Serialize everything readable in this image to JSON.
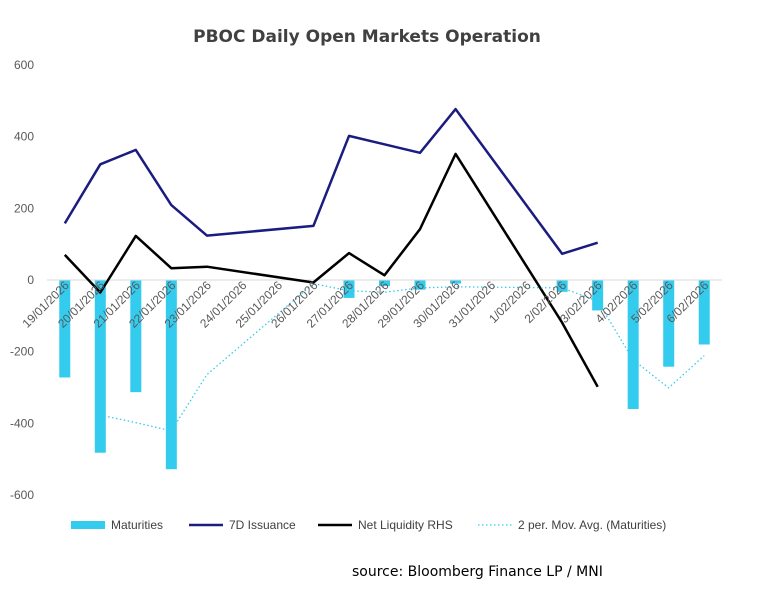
{
  "chart_data": {
    "type": "bar",
    "title": "PBOC Daily Open Markets Operation",
    "categories": [
      "19/01/2026",
      "20/01/2026",
      "21/01/2026",
      "22/01/2026",
      "23/01/2026",
      "24/01/2026",
      "25/01/2026",
      "26/01/2026",
      "27/01/2026",
      "28/01/2026",
      "29/01/2026",
      "30/01/2026",
      "31/01/2026",
      "1/02/2026",
      "2/02/2026",
      "3/02/2026",
      "4/02/2026",
      "5/02/2026",
      "6/02/2026"
    ],
    "ylim": [
      -600,
      600
    ],
    "yticks": [
      -600,
      -400,
      -200,
      0,
      200,
      400,
      600
    ],
    "ytick_labels": [
      "-600",
      "-400",
      "-200",
      "0",
      "200",
      "400",
      "600"
    ],
    "grid": false,
    "legend_position": "bottom",
    "series": [
      {
        "name": "Maturities",
        "type": "bar",
        "color": "#33CCEE",
        "values": [
          -272,
          -482,
          -313,
          -528,
          null,
          null,
          null,
          null,
          -50,
          -17,
          -27,
          -10,
          null,
          null,
          -33,
          -85,
          -360,
          -242,
          -180
        ]
      },
      {
        "name": "7D Issuance",
        "type": "line",
        "color": "#1B1C80",
        "values": [
          158,
          323,
          363,
          209,
          124,
          null,
          null,
          151,
          402,
          null,
          355,
          477,
          null,
          null,
          73,
          104,
          null,
          null,
          null
        ]
      },
      {
        "name": "Net Liquidity RHS",
        "type": "line",
        "color": "#000000",
        "values": [
          70,
          -35,
          123,
          33,
          37,
          null,
          null,
          -7,
          75,
          13,
          142,
          352,
          null,
          null,
          -119,
          -298,
          null,
          null,
          null
        ]
      },
      {
        "name": "2 per. Mov. Avg. (Maturities)",
        "type": "line",
        "dashed": true,
        "color": "#33CCEE",
        "values": [
          null,
          -377,
          -398,
          -421,
          -264,
          null,
          null,
          -10,
          -30,
          -34,
          -22,
          -19,
          null,
          null,
          -22,
          -59,
          -223,
          -301,
          -211
        ]
      }
    ]
  },
  "source": "source:  Bloomberg Finance LP / MNI"
}
